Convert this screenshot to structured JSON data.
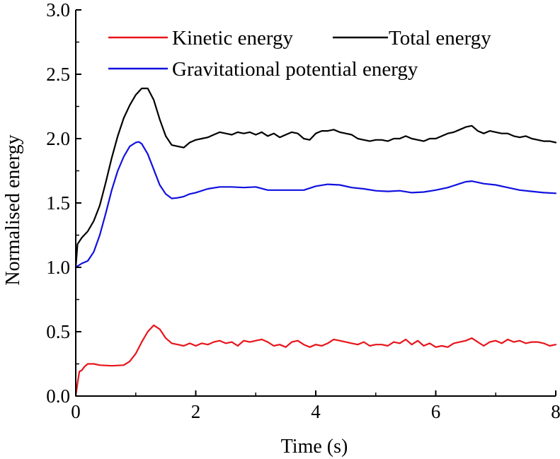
{
  "chart_data": {
    "type": "line",
    "title": "",
    "xlabel": "Time (s)",
    "ylabel": "Normalised energy",
    "xlim": [
      0,
      8
    ],
    "ylim": [
      0,
      3
    ],
    "x_ticks": [
      "0",
      "2",
      "4",
      "6",
      "8"
    ],
    "y_ticks": [
      "0.0",
      "0.5",
      "1.0",
      "1.5",
      "2.0",
      "2.5",
      "3.0"
    ],
    "legend_position": "top",
    "series": [
      {
        "name": "Kinetic energy",
        "color": "#e8141b",
        "x": [
          0,
          0.03,
          0.06,
          0.1,
          0.15,
          0.2,
          0.3,
          0.4,
          0.6,
          0.8,
          0.9,
          1.0,
          1.1,
          1.2,
          1.3,
          1.4,
          1.5,
          1.6,
          1.7,
          1.8,
          1.9,
          2.0,
          2.1,
          2.2,
          2.3,
          2.4,
          2.5,
          2.6,
          2.7,
          2.8,
          2.9,
          3.0,
          3.1,
          3.2,
          3.3,
          3.4,
          3.5,
          3.6,
          3.7,
          3.8,
          3.9,
          4.0,
          4.1,
          4.2,
          4.3,
          4.4,
          4.5,
          4.6,
          4.7,
          4.8,
          4.9,
          5.0,
          5.1,
          5.2,
          5.3,
          5.4,
          5.5,
          5.6,
          5.7,
          5.8,
          5.9,
          6.0,
          6.1,
          6.2,
          6.3,
          6.4,
          6.5,
          6.6,
          6.7,
          6.8,
          6.9,
          7.0,
          7.1,
          7.2,
          7.3,
          7.4,
          7.5,
          7.6,
          7.7,
          7.8,
          7.9,
          8.0
        ],
        "y": [
          0.0,
          0.1,
          0.19,
          0.2,
          0.23,
          0.25,
          0.25,
          0.24,
          0.235,
          0.24,
          0.27,
          0.33,
          0.42,
          0.5,
          0.55,
          0.52,
          0.45,
          0.41,
          0.4,
          0.39,
          0.41,
          0.39,
          0.41,
          0.4,
          0.42,
          0.43,
          0.41,
          0.42,
          0.39,
          0.43,
          0.42,
          0.43,
          0.44,
          0.42,
          0.39,
          0.4,
          0.38,
          0.42,
          0.43,
          0.4,
          0.38,
          0.4,
          0.39,
          0.41,
          0.44,
          0.43,
          0.42,
          0.41,
          0.4,
          0.42,
          0.39,
          0.4,
          0.4,
          0.39,
          0.42,
          0.41,
          0.44,
          0.4,
          0.43,
          0.39,
          0.41,
          0.38,
          0.39,
          0.38,
          0.41,
          0.42,
          0.43,
          0.45,
          0.42,
          0.39,
          0.42,
          0.43,
          0.41,
          0.44,
          0.42,
          0.43,
          0.41,
          0.42,
          0.42,
          0.41,
          0.39,
          0.4
        ]
      },
      {
        "name": "Total energy",
        "color": "#000000",
        "x": [
          0,
          0.03,
          0.1,
          0.2,
          0.3,
          0.4,
          0.5,
          0.6,
          0.7,
          0.8,
          0.9,
          1.0,
          1.1,
          1.2,
          1.3,
          1.4,
          1.5,
          1.6,
          1.7,
          1.8,
          1.9,
          2.0,
          2.1,
          2.2,
          2.3,
          2.4,
          2.5,
          2.6,
          2.7,
          2.8,
          2.9,
          3.0,
          3.1,
          3.2,
          3.3,
          3.4,
          3.5,
          3.6,
          3.7,
          3.8,
          3.9,
          4.0,
          4.1,
          4.2,
          4.3,
          4.4,
          4.5,
          4.6,
          4.7,
          4.8,
          4.9,
          5.0,
          5.1,
          5.2,
          5.3,
          5.4,
          5.5,
          5.6,
          5.7,
          5.8,
          5.9,
          6.0,
          6.1,
          6.2,
          6.3,
          6.4,
          6.5,
          6.6,
          6.7,
          6.8,
          6.9,
          7.0,
          7.1,
          7.2,
          7.3,
          7.4,
          7.5,
          7.6,
          7.7,
          7.8,
          7.9,
          8.0
        ],
        "y": [
          1.0,
          1.18,
          1.23,
          1.28,
          1.36,
          1.48,
          1.66,
          1.85,
          2.02,
          2.16,
          2.26,
          2.34,
          2.39,
          2.39,
          2.3,
          2.15,
          2.02,
          1.95,
          1.94,
          1.93,
          1.97,
          1.99,
          2.0,
          2.01,
          2.03,
          2.05,
          2.04,
          2.03,
          2.05,
          2.04,
          2.05,
          2.03,
          2.05,
          2.02,
          2.04,
          2.01,
          2.03,
          2.05,
          2.04,
          2.0,
          1.99,
          2.04,
          2.06,
          2.06,
          2.07,
          2.05,
          2.04,
          2.03,
          2.0,
          1.99,
          1.98,
          1.99,
          1.99,
          1.98,
          2.0,
          2.0,
          2.02,
          2.0,
          1.99,
          1.98,
          2.0,
          2.0,
          2.02,
          2.04,
          2.05,
          2.07,
          2.09,
          2.1,
          2.06,
          2.04,
          2.06,
          2.05,
          2.04,
          2.04,
          2.02,
          2.01,
          2.02,
          2.0,
          1.99,
          1.98,
          1.98,
          1.97
        ]
      },
      {
        "name": "Gravitational potential energy",
        "color": "#1010e0",
        "x": [
          0,
          0.1,
          0.2,
          0.3,
          0.4,
          0.5,
          0.6,
          0.7,
          0.8,
          0.9,
          1.0,
          1.05,
          1.1,
          1.2,
          1.3,
          1.4,
          1.5,
          1.6,
          1.7,
          1.8,
          1.9,
          2.0,
          2.2,
          2.4,
          2.6,
          2.8,
          3.0,
          3.2,
          3.4,
          3.6,
          3.8,
          4.0,
          4.2,
          4.4,
          4.6,
          4.8,
          5.0,
          5.2,
          5.4,
          5.6,
          5.8,
          6.0,
          6.2,
          6.4,
          6.5,
          6.6,
          6.8,
          7.0,
          7.2,
          7.4,
          7.6,
          7.8,
          8.0
        ],
        "y": [
          1.0,
          1.03,
          1.05,
          1.12,
          1.25,
          1.42,
          1.6,
          1.75,
          1.86,
          1.94,
          1.97,
          1.975,
          1.96,
          1.88,
          1.76,
          1.64,
          1.57,
          1.535,
          1.54,
          1.55,
          1.57,
          1.58,
          1.61,
          1.625,
          1.625,
          1.62,
          1.625,
          1.6,
          1.6,
          1.6,
          1.6,
          1.63,
          1.645,
          1.64,
          1.62,
          1.61,
          1.595,
          1.59,
          1.595,
          1.58,
          1.585,
          1.6,
          1.62,
          1.65,
          1.665,
          1.67,
          1.65,
          1.64,
          1.62,
          1.6,
          1.59,
          1.58,
          1.575
        ]
      }
    ]
  }
}
